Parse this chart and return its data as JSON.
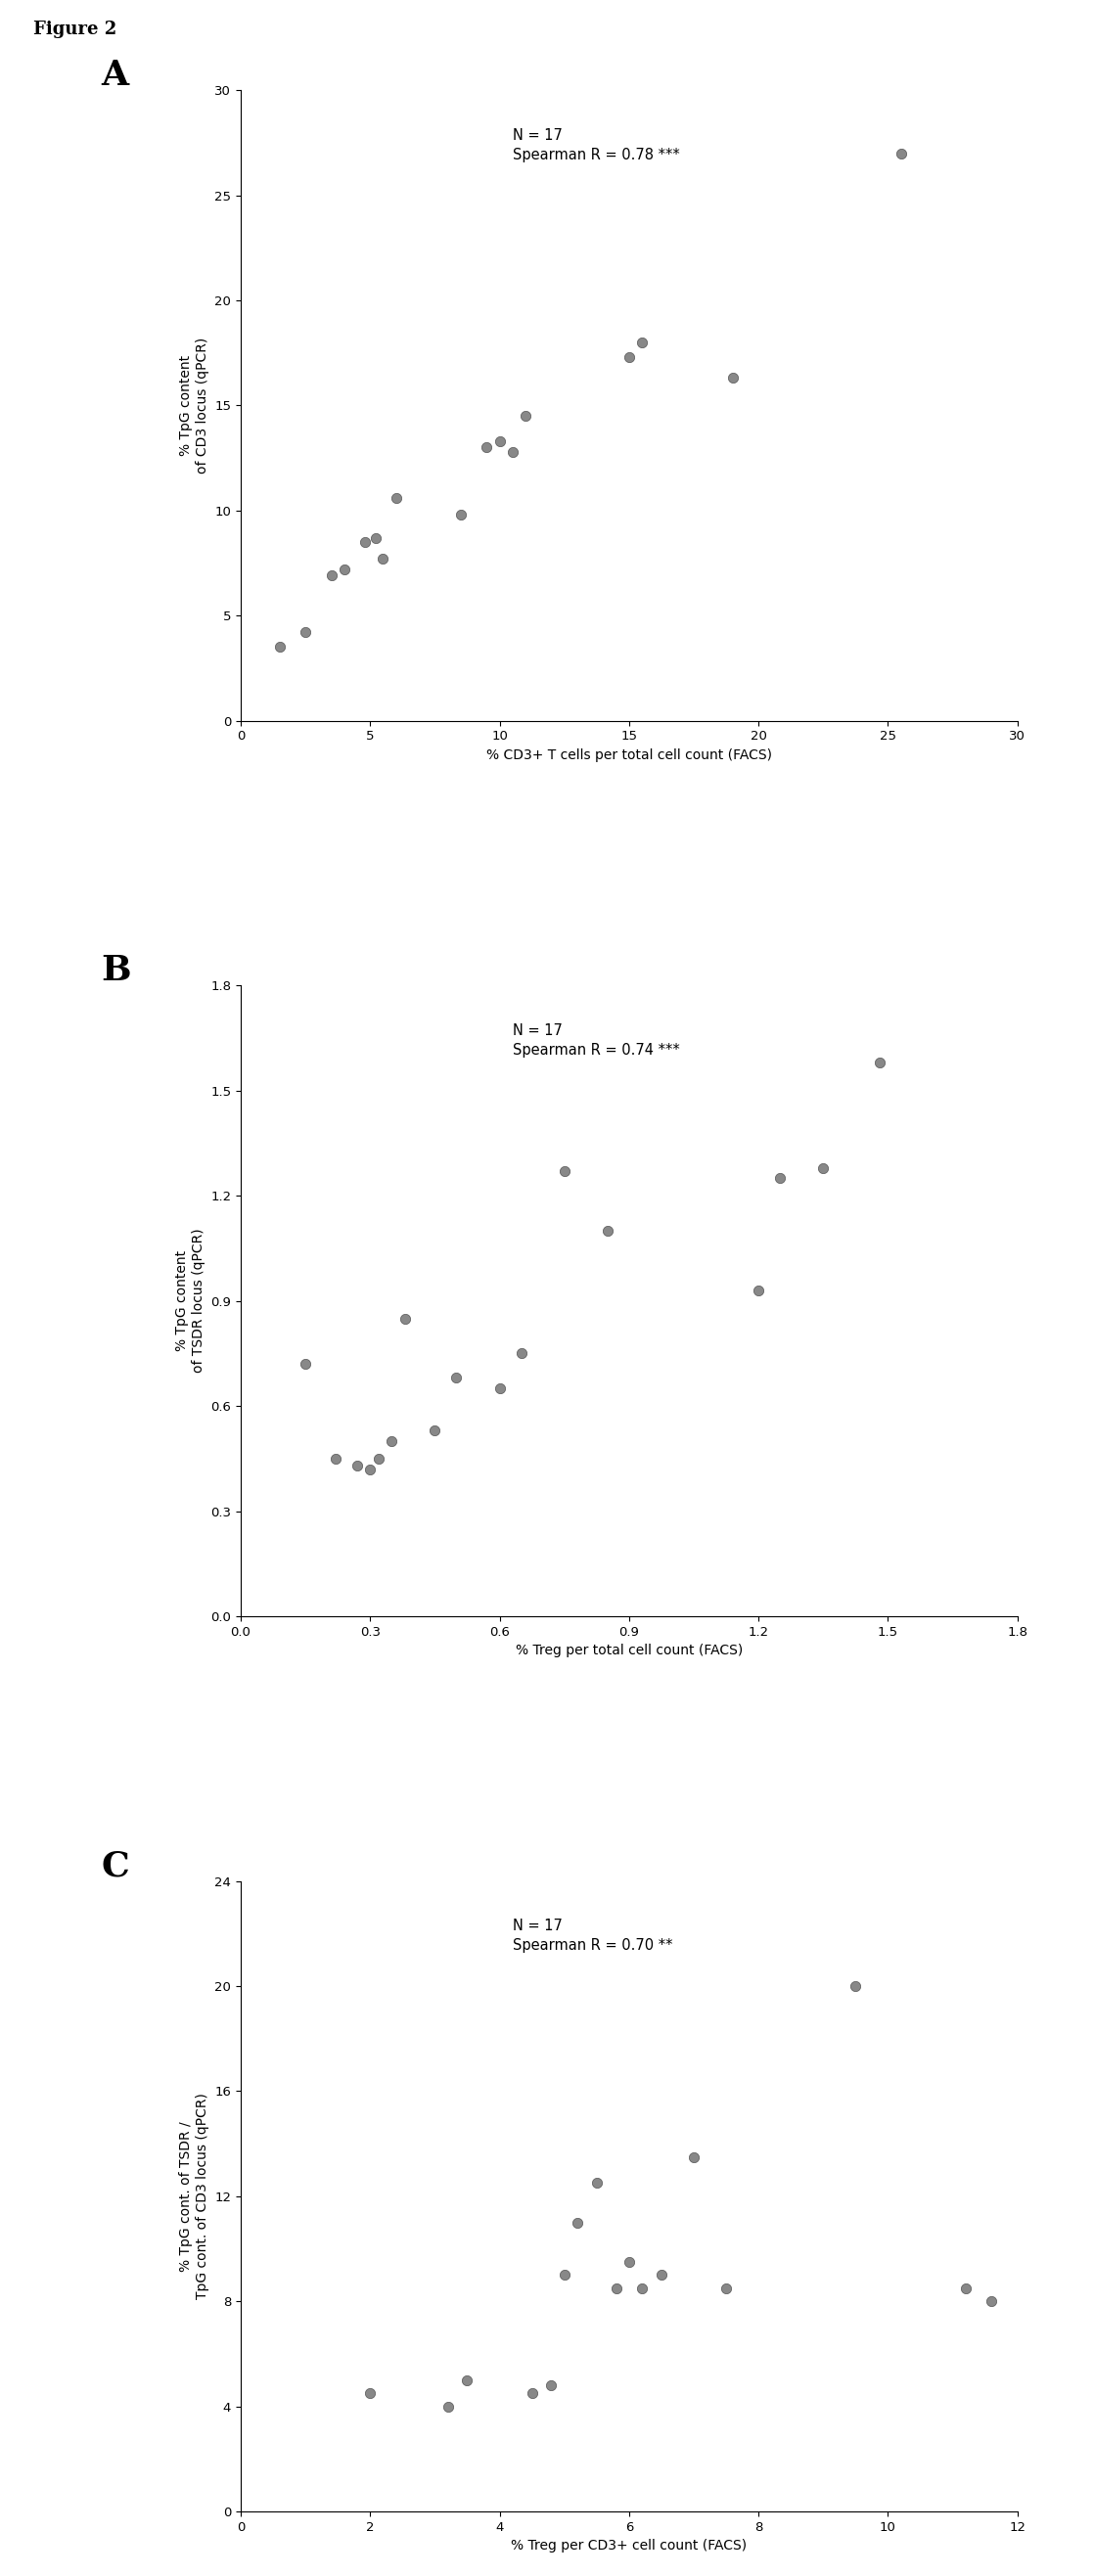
{
  "figure_title": "Figure 2",
  "panel_labels": [
    "A",
    "B",
    "C"
  ],
  "plots": [
    {
      "x": [
        1.5,
        2.5,
        3.5,
        4.0,
        4.8,
        5.2,
        5.5,
        6.0,
        8.5,
        9.5,
        10.0,
        10.5,
        11.0,
        15.0,
        15.5,
        19.0,
        25.5
      ],
      "y": [
        3.5,
        4.2,
        6.9,
        7.2,
        8.5,
        8.7,
        7.7,
        10.6,
        9.8,
        13.0,
        13.3,
        12.8,
        14.5,
        17.3,
        18.0,
        16.3,
        27.0
      ],
      "xlabel": "% CD3+ T cells per total cell count (FACS)",
      "ylabel": "% TpG content\nof CD3 locus (qPCR)",
      "xlim": [
        0,
        30
      ],
      "ylim": [
        0,
        30
      ],
      "xticks": [
        0,
        5,
        10,
        15,
        20,
        25,
        30
      ],
      "yticks": [
        0,
        5,
        10,
        15,
        20,
        25,
        30
      ],
      "annotation": "N = 17\nSpearman R = 0.78 ***"
    },
    {
      "x": [
        0.15,
        0.22,
        0.27,
        0.3,
        0.32,
        0.35,
        0.38,
        0.45,
        0.5,
        0.6,
        0.65,
        0.75,
        0.85,
        1.2,
        1.25,
        1.35,
        1.48
      ],
      "y": [
        0.72,
        0.45,
        0.43,
        0.42,
        0.45,
        0.5,
        0.85,
        0.53,
        0.68,
        0.65,
        0.75,
        1.27,
        1.1,
        0.93,
        1.25,
        1.28,
        1.58
      ],
      "xlabel": "% Treg per total cell count (FACS)",
      "ylabel": "% TpG content\nof TSDR locus (qPCR)",
      "xlim": [
        0,
        1.8
      ],
      "ylim": [
        0,
        1.8
      ],
      "xticks": [
        0,
        0.3,
        0.6,
        0.9,
        1.2,
        1.5,
        1.8
      ],
      "yticks": [
        0,
        0.3,
        0.6,
        0.9,
        1.2,
        1.5,
        1.8
      ],
      "annotation": "N = 17\nSpearman R = 0.74 ***"
    },
    {
      "x": [
        2.0,
        3.2,
        3.5,
        4.5,
        4.8,
        5.0,
        5.2,
        5.5,
        5.8,
        6.0,
        6.2,
        6.5,
        7.0,
        7.5,
        9.5,
        11.2,
        11.6
      ],
      "y": [
        4.5,
        4.0,
        5.0,
        4.5,
        4.8,
        9.0,
        11.0,
        12.5,
        8.5,
        9.5,
        8.5,
        9.0,
        13.5,
        8.5,
        20.0,
        8.5,
        8.0
      ],
      "xlabel": "% Treg per CD3+ cell count (FACS)",
      "ylabel": "% TpG cont. of TSDR /\nTpG cont. of CD3 locus (qPCR)",
      "xlim": [
        0,
        12
      ],
      "ylim": [
        0,
        24
      ],
      "xticks": [
        0,
        2,
        4,
        6,
        8,
        10,
        12
      ],
      "yticks": [
        0,
        4,
        8,
        12,
        16,
        20,
        24
      ],
      "annotation": "N = 17\nSpearman R = 0.70 **"
    }
  ],
  "marker_color": "#888888",
  "marker_size": 55,
  "marker_style": "o",
  "marker_edgecolor": "#555555",
  "marker_edgewidth": 0.5,
  "background_color": "#ffffff",
  "annotation_fontsize": 10.5,
  "axis_label_fontsize": 10,
  "tick_label_fontsize": 9.5,
  "panel_label_fontsize": 26,
  "figure_title_fontsize": 13
}
